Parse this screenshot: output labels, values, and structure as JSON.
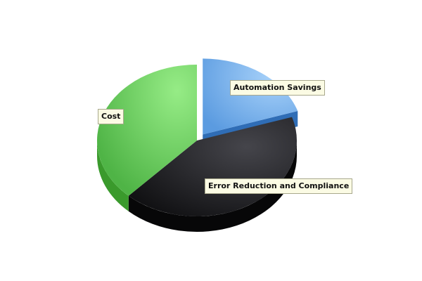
{
  "chart_data": {
    "type": "pie",
    "style": "3d",
    "exploded": [
      "Automation Savings"
    ],
    "categories": [
      "Automation Savings",
      "Error Reduction and Compliance",
      "Cost"
    ],
    "values": [
      20,
      42,
      38
    ],
    "colors": [
      "#6aa9e6",
      "#1c1c1e",
      "#6fd066"
    ],
    "title": ""
  }
}
